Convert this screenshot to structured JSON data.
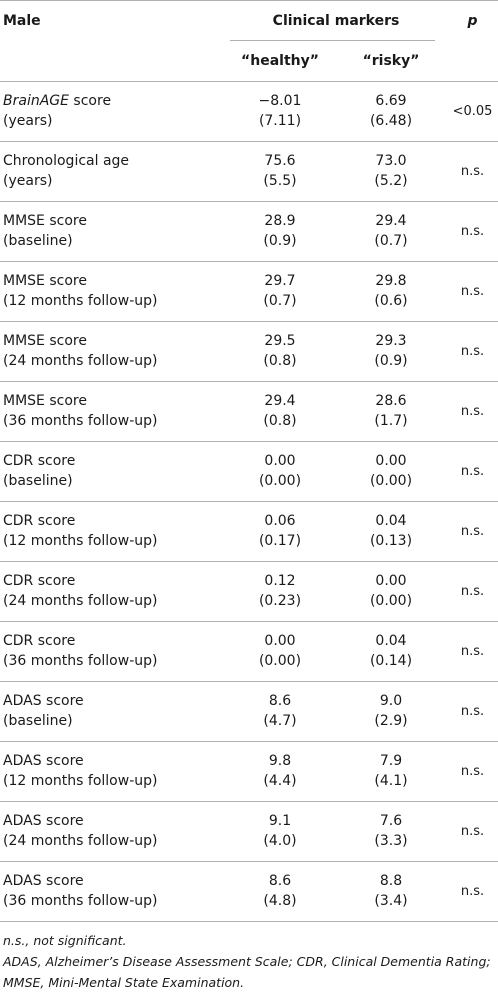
{
  "header": {
    "col1": "Male",
    "group": "Clinical markers",
    "healthy": "“healthy”",
    "risky": "“risky”",
    "p": "p"
  },
  "rows": [
    {
      "label_italic": "BrainAGE",
      "label_rest": " score",
      "sub": "(years)",
      "h_mean": "−8.01",
      "h_sd": "(7.11)",
      "r_mean": "6.69",
      "r_sd": "(6.48)",
      "p": "<0.05"
    },
    {
      "label": "Chronological age",
      "sub": "(years)",
      "h_mean": "75.6",
      "h_sd": "(5.5)",
      "r_mean": "73.0",
      "r_sd": "(5.2)",
      "p": "n.s."
    },
    {
      "label": "MMSE score",
      "sub": "(baseline)",
      "h_mean": "28.9",
      "h_sd": "(0.9)",
      "r_mean": "29.4",
      "r_sd": "(0.7)",
      "p": "n.s."
    },
    {
      "label": "MMSE score",
      "sub": "(12 months follow-up)",
      "h_mean": "29.7",
      "h_sd": "(0.7)",
      "r_mean": "29.8",
      "r_sd": "(0.6)",
      "p": "n.s."
    },
    {
      "label": "MMSE score",
      "sub": "(24 months follow-up)",
      "h_mean": "29.5",
      "h_sd": "(0.8)",
      "r_mean": "29.3",
      "r_sd": "(0.9)",
      "p": "n.s."
    },
    {
      "label": "MMSE score",
      "sub": "(36 months follow-up)",
      "h_mean": "29.4",
      "h_sd": "(0.8)",
      "r_mean": "28.6",
      "r_sd": "(1.7)",
      "p": "n.s."
    },
    {
      "label": "CDR score",
      "sub": "(baseline)",
      "h_mean": "0.00",
      "h_sd": "(0.00)",
      "r_mean": "0.00",
      "r_sd": "(0.00)",
      "p": "n.s."
    },
    {
      "label": "CDR score",
      "sub": "(12 months follow-up)",
      "h_mean": "0.06",
      "h_sd": "(0.17)",
      "r_mean": "0.04",
      "r_sd": "(0.13)",
      "p": "n.s."
    },
    {
      "label": "CDR score",
      "sub": "(24 months follow-up)",
      "h_mean": "0.12",
      "h_sd": "(0.23)",
      "r_mean": "0.00",
      "r_sd": "(0.00)",
      "p": "n.s."
    },
    {
      "label": "CDR score",
      "sub": "(36 months follow-up)",
      "h_mean": "0.00",
      "h_sd": "(0.00)",
      "r_mean": "0.04",
      "r_sd": "(0.14)",
      "p": "n.s."
    },
    {
      "label": "ADAS score",
      "sub": "(baseline)",
      "h_mean": "8.6",
      "h_sd": "(4.7)",
      "r_mean": "9.0",
      "r_sd": "(2.9)",
      "p": "n.s."
    },
    {
      "label": "ADAS score",
      "sub": "(12 months follow-up)",
      "h_mean": "9.8",
      "h_sd": "(4.4)",
      "r_mean": "7.9",
      "r_sd": "(4.1)",
      "p": "n.s."
    },
    {
      "label": "ADAS score",
      "sub": "(24 months follow-up)",
      "h_mean": "9.1",
      "h_sd": "(4.0)",
      "r_mean": "7.6",
      "r_sd": "(3.3)",
      "p": "n.s."
    },
    {
      "label": "ADAS score",
      "sub": "(36 months follow-up)",
      "h_mean": "8.6",
      "h_sd": "(4.8)",
      "r_mean": "8.8",
      "r_sd": "(3.4)",
      "p": "n.s."
    }
  ],
  "footnotes": [
    "n.s., not significant.",
    "ADAS, Alzheimer’s Disease Assessment Scale; CDR, Clinical Dementia Rating;",
    "MMSE, Mini-Mental State Examination."
  ]
}
